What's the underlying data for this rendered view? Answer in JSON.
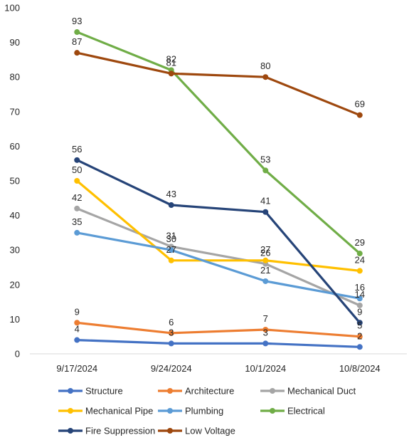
{
  "chart_data": {
    "type": "line",
    "title": "",
    "xlabel": "",
    "ylabel": "",
    "x": [
      "9/17/2024",
      "9/24/2024",
      "10/1/2024",
      "10/8/2024"
    ],
    "ylim": [
      0,
      100
    ],
    "yticks": [
      "0",
      "10",
      "20",
      "30",
      "40",
      "50",
      "60",
      "70",
      "80",
      "90",
      "100"
    ],
    "grid": false,
    "legend_position": "bottom",
    "series": [
      {
        "name": "Structure",
        "color": "#4472C4",
        "values": [
          4,
          3,
          3,
          2
        ]
      },
      {
        "name": "Architecture",
        "color": "#ED7D31",
        "values": [
          9,
          6,
          7,
          5
        ]
      },
      {
        "name": "Mechanical Duct",
        "color": "#A5A5A5",
        "values": [
          42,
          31,
          26,
          14
        ]
      },
      {
        "name": "Mechanical Pipe",
        "color": "#FFC000",
        "values": [
          50,
          27,
          27,
          24
        ]
      },
      {
        "name": "Plumbing",
        "color": "#5B9BD5",
        "values": [
          35,
          30,
          21,
          16
        ]
      },
      {
        "name": "Electrical",
        "color": "#70AD47",
        "values": [
          93,
          82,
          53,
          29
        ]
      },
      {
        "name": "Fire Suppression",
        "color": "#264478",
        "values": [
          56,
          43,
          41,
          9
        ]
      },
      {
        "name": "Low Voltage",
        "color": "#9E480E",
        "values": [
          87,
          81,
          80,
          69
        ]
      }
    ]
  }
}
